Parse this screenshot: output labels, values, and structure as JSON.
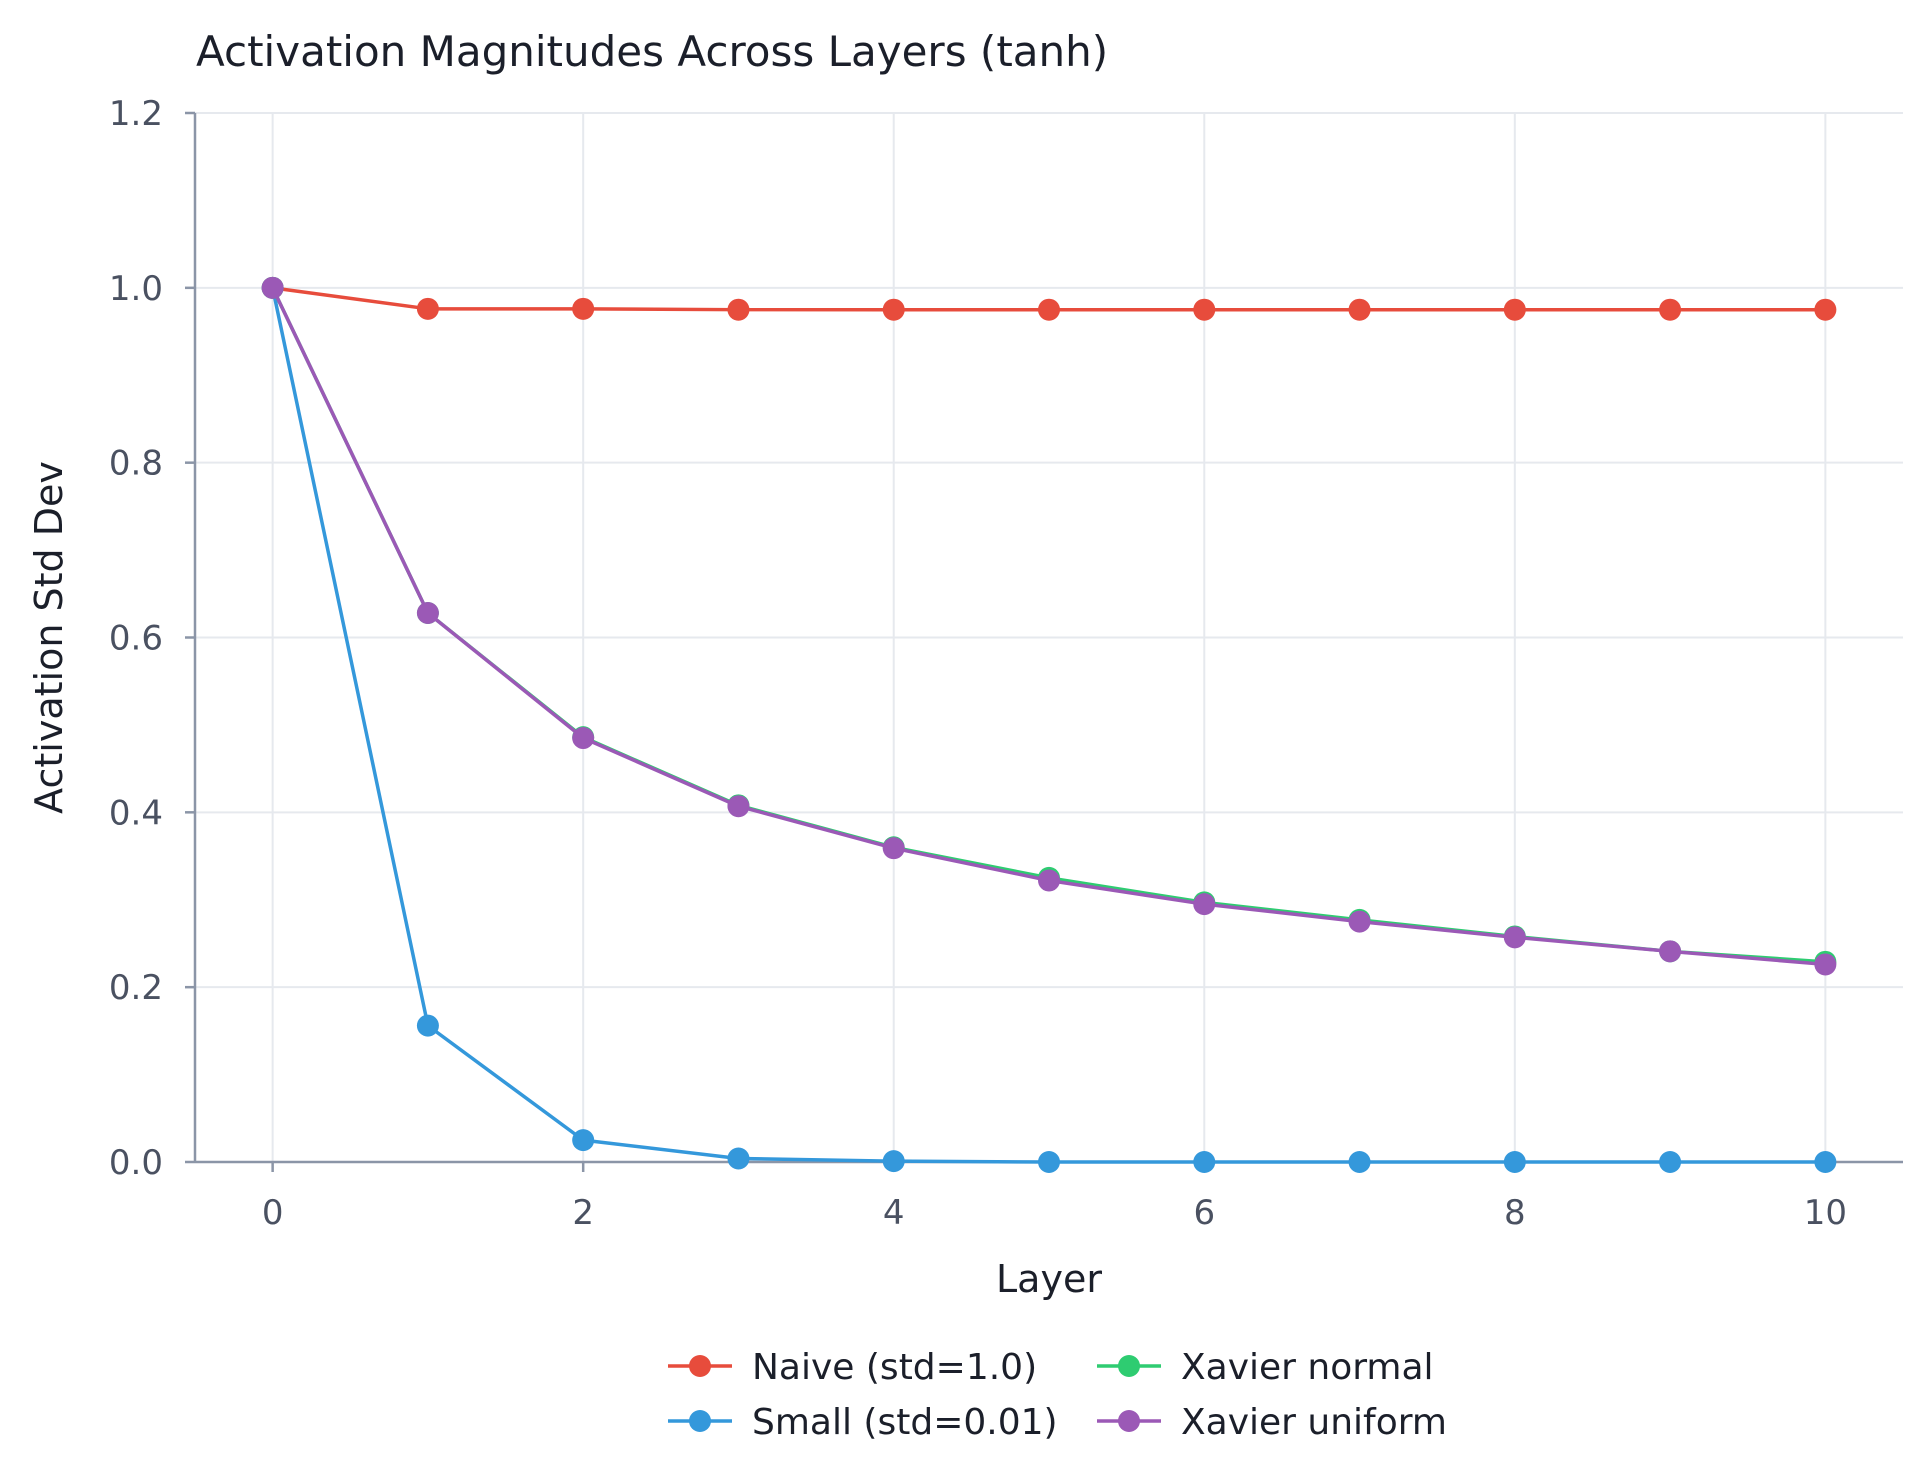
{
  "chart_data": {
    "type": "line",
    "title": "Activation Magnitudes Across Layers (tanh)",
    "xlabel": "Layer",
    "ylabel": "Activation Std Dev",
    "x": [
      0,
      1,
      2,
      3,
      4,
      5,
      6,
      7,
      8,
      9,
      10
    ],
    "xlim": [
      -0.5,
      10.5
    ],
    "ylim": [
      0,
      1.2
    ],
    "xticks": [
      0,
      2,
      4,
      6,
      8,
      10
    ],
    "yticks": [
      0.0,
      0.2,
      0.4,
      0.6,
      0.8,
      1.0,
      1.2
    ],
    "xtick_labels": [
      "0",
      "2",
      "4",
      "6",
      "8",
      "10"
    ],
    "ytick_labels": [
      "0.0",
      "0.2",
      "0.4",
      "0.6",
      "0.8",
      "1.0",
      "1.2"
    ],
    "grid": true,
    "legend_position": "bottom-center",
    "series": [
      {
        "name": "Naive (std=1.0)",
        "color": "#e74c3c",
        "values": [
          1.0,
          0.976,
          0.976,
          0.975,
          0.975,
          0.975,
          0.975,
          0.975,
          0.975,
          0.975,
          0.975
        ]
      },
      {
        "name": "Small (std=0.01)",
        "color": "#3498db",
        "values": [
          1.0,
          0.156,
          0.025,
          0.004,
          0.001,
          0.0,
          0.0,
          0.0,
          0.0,
          0.0,
          0.0
        ]
      },
      {
        "name": "Xavier normal",
        "color": "#2ecc71",
        "values": [
          1.0,
          0.628,
          0.486,
          0.408,
          0.36,
          0.325,
          0.297,
          0.277,
          0.258,
          0.241,
          0.229
        ]
      },
      {
        "name": "Xavier uniform",
        "color": "#9b59b6",
        "values": [
          1.0,
          0.628,
          0.485,
          0.407,
          0.359,
          0.322,
          0.295,
          0.275,
          0.257,
          0.241,
          0.226
        ]
      }
    ]
  }
}
